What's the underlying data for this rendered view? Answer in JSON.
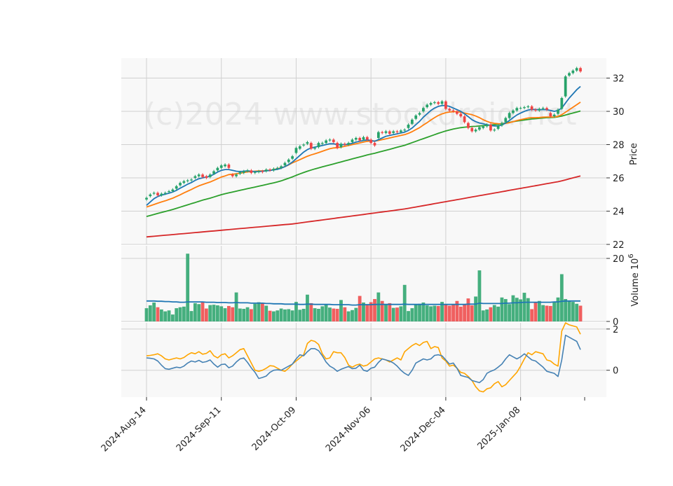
{
  "chart_data": {
    "type": "candlestick",
    "watermark": "(c)2024 www.stockdroid.net",
    "price_panel": {
      "ylabel": "Price",
      "ylim": [
        22,
        33.2
      ],
      "yticks": [
        22,
        24,
        26,
        28,
        30,
        32
      ]
    },
    "volume_panel": {
      "ylabel": "Volume",
      "ylabel_exponent": "10^6",
      "ylim": [
        0,
        24
      ],
      "yticks": [
        0,
        20
      ]
    },
    "indicator_panel": {
      "ylim": [
        -1.3,
        2.3
      ],
      "yticks": [
        0,
        2
      ]
    },
    "x_ticks": [
      {
        "label": "2024-Aug-14",
        "index": 0
      },
      {
        "label": "2024-Sep-11",
        "index": 20
      },
      {
        "label": "2024-Oct-09",
        "index": 40
      },
      {
        "label": "2024-Nov-06",
        "index": 60
      },
      {
        "label": "2024-Dec-04",
        "index": 80
      },
      {
        "label": "2025-Jan-08",
        "index": 100
      }
    ],
    "colors": {
      "up": "#26a269",
      "down": "#ef4444",
      "ma_short": "#1f77b4",
      "ma_mid": "#ff7f0e",
      "ma_long": "#2ca02c",
      "ma_200": "#d62728",
      "volume_avg": "#1f77b4",
      "osc_1": "#4682b4",
      "osc_2": "#ffa500",
      "panel_bg": "#f8f8f8",
      "grid": "#d0d0d0"
    },
    "candles_close": [
      24.8,
      25.0,
      25.1,
      24.95,
      25.05,
      25.1,
      25.2,
      25.3,
      25.5,
      25.7,
      25.8,
      25.85,
      25.9,
      26.1,
      26.2,
      26.05,
      26.0,
      26.2,
      26.4,
      26.6,
      26.75,
      26.8,
      26.6,
      26.1,
      26.2,
      26.35,
      26.4,
      26.45,
      26.3,
      26.35,
      26.4,
      26.35,
      26.5,
      26.45,
      26.55,
      26.6,
      26.7,
      26.9,
      27.1,
      27.3,
      27.8,
      27.9,
      28.0,
      28.15,
      27.75,
      27.8,
      28.1,
      28.1,
      28.25,
      28.3,
      28.15,
      27.8,
      28.05,
      28.0,
      28.1,
      28.3,
      28.4,
      28.25,
      28.45,
      28.3,
      28.1,
      27.95,
      28.75,
      28.7,
      28.8,
      28.65,
      28.8,
      28.75,
      28.85,
      28.9,
      29.2,
      29.5,
      29.75,
      29.9,
      30.2,
      30.4,
      30.5,
      30.55,
      30.45,
      30.6,
      30.15,
      30.05,
      30.0,
      29.85,
      29.7,
      29.35,
      29.0,
      28.8,
      28.9,
      29.05,
      29.1,
      29.2,
      28.85,
      28.9,
      29.15,
      29.3,
      29.6,
      29.9,
      30.05,
      30.2,
      30.2,
      30.25,
      30.3,
      30.1,
      30.05,
      30.15,
      30.2,
      30.1,
      29.7,
      29.8,
      30.1,
      30.8,
      32.1,
      32.3,
      32.45,
      32.6,
      32.4
    ],
    "candles_open": [
      24.7,
      24.9,
      25.05,
      25.1,
      24.95,
      25.05,
      25.15,
      25.2,
      25.35,
      25.55,
      25.7,
      25.8,
      25.85,
      26.0,
      26.1,
      26.2,
      26.1,
      26.05,
      26.25,
      26.45,
      26.6,
      26.7,
      26.8,
      26.2,
      26.1,
      26.25,
      26.3,
      26.4,
      26.45,
      26.3,
      26.35,
      26.4,
      26.4,
      26.5,
      26.45,
      26.55,
      26.6,
      26.75,
      26.95,
      27.15,
      27.5,
      27.75,
      27.95,
      28.05,
      28.1,
      27.75,
      27.85,
      28.05,
      28.1,
      28.25,
      28.3,
      28.1,
      27.85,
      28.05,
      28.0,
      28.15,
      28.3,
      28.4,
      28.3,
      28.45,
      28.3,
      28.1,
      28.4,
      28.75,
      28.7,
      28.8,
      28.7,
      28.8,
      28.75,
      28.85,
      29.0,
      29.25,
      29.55,
      29.8,
      30.0,
      30.25,
      30.4,
      30.5,
      30.55,
      30.45,
      30.6,
      30.15,
      30.05,
      30.0,
      29.85,
      29.7,
      29.3,
      29.0,
      28.8,
      28.9,
      29.0,
      29.1,
      29.2,
      28.85,
      28.95,
      29.15,
      29.35,
      29.6,
      29.9,
      30.05,
      30.2,
      30.2,
      30.25,
      30.3,
      30.1,
      30.05,
      30.15,
      30.2,
      29.9,
      29.7,
      29.85,
      30.15,
      30.9,
      32.15,
      32.3,
      32.45,
      32.6
    ],
    "ma_short": [
      24.35,
      24.55,
      24.75,
      24.88,
      24.96,
      25.02,
      25.08,
      25.15,
      25.25,
      25.38,
      25.5,
      25.62,
      25.72,
      25.85,
      25.95,
      26.0,
      26.05,
      26.1,
      26.22,
      26.35,
      26.45,
      26.5,
      26.5,
      26.45,
      26.4,
      26.38,
      26.4,
      26.42,
      26.4,
      26.38,
      26.38,
      26.4,
      26.42,
      26.45,
      26.48,
      26.52,
      26.58,
      26.68,
      26.8,
      26.95,
      27.15,
      27.35,
      27.55,
      27.7,
      27.8,
      27.85,
      27.9,
      27.95,
      28.0,
      28.05,
      28.05,
      28.0,
      28.0,
      28.0,
      28.02,
      28.08,
      28.15,
      28.2,
      28.25,
      28.28,
      28.25,
      28.2,
      28.3,
      28.4,
      28.5,
      28.55,
      28.6,
      28.65,
      28.7,
      28.75,
      28.85,
      29.0,
      29.2,
      29.4,
      29.65,
      29.85,
      30.05,
      30.2,
      30.3,
      30.35,
      30.35,
      30.3,
      30.2,
      30.1,
      30.0,
      29.85,
      29.68,
      29.5,
      29.38,
      29.3,
      29.25,
      29.2,
      29.15,
      29.12,
      29.12,
      29.18,
      29.3,
      29.45,
      29.62,
      29.78,
      29.9,
      30.0,
      30.08,
      30.12,
      30.1,
      30.1,
      30.1,
      30.1,
      30.05,
      30.0,
      30.05,
      30.2,
      30.5,
      30.8,
      31.05,
      31.3,
      31.5
    ],
    "ma_mid": [
      24.25,
      24.32,
      24.4,
      24.48,
      24.55,
      24.62,
      24.7,
      24.78,
      24.88,
      24.98,
      25.1,
      25.2,
      25.3,
      25.42,
      25.52,
      25.6,
      25.68,
      25.75,
      25.85,
      25.95,
      26.05,
      26.12,
      26.2,
      26.22,
      26.25,
      26.28,
      26.32,
      26.36,
      26.38,
      26.4,
      26.42,
      26.42,
      26.44,
      26.46,
      26.5,
      26.55,
      26.6,
      26.68,
      26.78,
      26.9,
      27.0,
      27.1,
      27.2,
      27.3,
      27.38,
      27.45,
      27.52,
      27.6,
      27.68,
      27.75,
      27.8,
      27.82,
      27.85,
      27.9,
      27.95,
      28.0,
      28.05,
      28.1,
      28.15,
      28.2,
      28.22,
      28.22,
      28.25,
      28.3,
      28.35,
      28.4,
      28.45,
      28.5,
      28.55,
      28.6,
      28.68,
      28.78,
      28.9,
      29.02,
      29.18,
      29.32,
      29.48,
      29.62,
      29.75,
      29.85,
      29.92,
      29.96,
      29.98,
      29.98,
      29.95,
      29.9,
      29.85,
      29.8,
      29.72,
      29.62,
      29.5,
      29.4,
      29.32,
      29.28,
      29.26,
      29.25,
      29.28,
      29.32,
      29.38,
      29.45,
      29.5,
      29.55,
      29.6,
      29.62,
      29.62,
      29.63,
      29.65,
      29.66,
      29.66,
      29.66,
      29.7,
      29.8,
      29.95,
      30.1,
      30.25,
      30.4,
      30.55
    ],
    "ma_long": [
      23.68,
      23.74,
      23.8,
      23.86,
      23.92,
      23.98,
      24.04,
      24.1,
      24.17,
      24.24,
      24.31,
      24.38,
      24.45,
      24.52,
      24.59,
      24.66,
      24.72,
      24.78,
      24.85,
      24.92,
      24.99,
      25.05,
      25.1,
      25.15,
      25.2,
      25.25,
      25.3,
      25.35,
      25.4,
      25.45,
      25.5,
      25.55,
      25.6,
      25.65,
      25.7,
      25.76,
      25.82,
      25.9,
      25.98,
      26.06,
      26.15,
      26.24,
      26.32,
      26.4,
      26.47,
      26.54,
      26.6,
      26.66,
      26.72,
      26.78,
      26.84,
      26.9,
      26.96,
      27.02,
      27.08,
      27.14,
      27.2,
      27.26,
      27.32,
      27.38,
      27.43,
      27.48,
      27.54,
      27.6,
      27.66,
      27.72,
      27.78,
      27.84,
      27.9,
      27.96,
      28.04,
      28.12,
      28.2,
      28.28,
      28.36,
      28.44,
      28.52,
      28.6,
      28.68,
      28.75,
      28.82,
      28.88,
      28.94,
      28.98,
      29.02,
      29.05,
      29.07,
      29.09,
      29.1,
      29.12,
      29.14,
      29.16,
      29.18,
      29.2,
      29.22,
      29.26,
      29.3,
      29.34,
      29.38,
      29.42,
      29.45,
      29.48,
      29.51,
      29.54,
      29.56,
      29.58,
      29.6,
      29.62,
      29.63,
      29.64,
      29.67,
      29.72,
      29.78,
      29.84,
      29.9,
      29.96,
      30.02
    ],
    "ma_200": [
      22.45,
      22.47,
      22.49,
      22.51,
      22.53,
      22.55,
      22.57,
      22.59,
      22.61,
      22.63,
      22.65,
      22.67,
      22.69,
      22.71,
      22.73,
      22.75,
      22.77,
      22.79,
      22.81,
      22.83,
      22.85,
      22.87,
      22.89,
      22.91,
      22.93,
      22.95,
      22.97,
      22.99,
      23.01,
      23.03,
      23.05,
      23.07,
      23.09,
      23.11,
      23.13,
      23.15,
      23.17,
      23.19,
      23.21,
      23.23,
      23.26,
      23.29,
      23.32,
      23.35,
      23.38,
      23.41,
      23.44,
      23.47,
      23.5,
      23.53,
      23.56,
      23.59,
      23.62,
      23.65,
      23.68,
      23.71,
      23.74,
      23.77,
      23.8,
      23.83,
      23.86,
      23.89,
      23.92,
      23.95,
      23.98,
      24.01,
      24.04,
      24.07,
      24.1,
      24.13,
      24.17,
      24.21,
      24.25,
      24.29,
      24.33,
      24.37,
      24.41,
      24.45,
      24.49,
      24.53,
      24.57,
      24.61,
      24.65,
      24.69,
      24.73,
      24.77,
      24.81,
      24.85,
      24.89,
      24.93,
      24.97,
      25.01,
      25.05,
      25.09,
      25.13,
      25.17,
      25.21,
      25.25,
      25.29,
      25.33,
      25.37,
      25.41,
      25.45,
      25.49,
      25.53,
      25.57,
      25.61,
      25.65,
      25.69,
      25.73,
      25.77,
      25.82,
      25.88,
      25.94,
      26.0,
      26.06,
      26.12
    ],
    "volume": [
      4.2,
      5.1,
      6.0,
      4.5,
      3.8,
      3.2,
      3.5,
      2.2,
      4.2,
      4.5,
      4.7,
      21.5,
      3.3,
      5.8,
      5.5,
      6.3,
      4.1,
      5.2,
      5.3,
      5.1,
      4.8,
      4.2,
      4.9,
      4.5,
      9.2,
      4.1,
      4.0,
      4.5,
      3.9,
      5.6,
      6.1,
      5.9,
      5.0,
      3.4,
      3.2,
      3.5,
      4.1,
      3.8,
      3.9,
      3.5,
      6.2,
      3.7,
      4.0,
      8.5,
      5.8,
      4.2,
      4.0,
      4.8,
      5.3,
      4.4,
      4.1,
      4.0,
      6.8,
      4.5,
      3.2,
      3.6,
      4.3,
      8.1,
      6.0,
      5.5,
      6.1,
      7.1,
      9.2,
      6.5,
      5.5,
      5.8,
      4.3,
      4.4,
      4.8,
      11.6,
      3.3,
      4.2,
      5.5,
      5.6,
      6.0,
      5.1,
      4.8,
      5.0,
      4.9,
      6.2,
      5.3,
      5.0,
      5.5,
      6.5,
      4.7,
      5.5,
      7.3,
      5.1,
      7.9,
      16.2,
      3.5,
      3.8,
      4.5,
      5.2,
      4.7,
      7.6,
      7.1,
      5.5,
      8.3,
      7.5,
      7.0,
      9.1,
      7.4,
      3.9,
      6.0,
      6.5,
      5.2,
      5.0,
      4.9,
      6.3,
      7.6,
      15.0,
      7.1,
      6.5,
      6.2,
      5.6,
      5.0
    ],
    "volume_avg": [
      6.5,
      6.5,
      6.5,
      6.4,
      6.4,
      6.3,
      6.3,
      6.2,
      6.2,
      6.1,
      6.1,
      6.2,
      6.2,
      6.2,
      6.2,
      6.2,
      6.1,
      6.1,
      6.1,
      6.0,
      6.0,
      6.0,
      5.9,
      5.9,
      6.0,
      5.9,
      5.9,
      5.9,
      5.8,
      5.8,
      5.8,
      5.8,
      5.7,
      5.7,
      5.6,
      5.6,
      5.6,
      5.5,
      5.5,
      5.5,
      5.5,
      5.4,
      5.4,
      5.5,
      5.5,
      5.4,
      5.4,
      5.4,
      5.4,
      5.4,
      5.3,
      5.3,
      5.3,
      5.3,
      5.3,
      5.2,
      5.2,
      5.3,
      5.3,
      5.3,
      5.3,
      5.4,
      5.4,
      5.4,
      5.4,
      5.4,
      5.4,
      5.4,
      5.4,
      5.5,
      5.4,
      5.4,
      5.4,
      5.4,
      5.4,
      5.4,
      5.4,
      5.4,
      5.4,
      5.4,
      5.4,
      5.4,
      5.4,
      5.4,
      5.4,
      5.4,
      5.5,
      5.5,
      5.5,
      5.8,
      5.7,
      5.7,
      5.7,
      5.7,
      5.7,
      5.7,
      5.8,
      5.8,
      5.9,
      5.9,
      6.0,
      6.1,
      6.1,
      6.1,
      6.1,
      6.1,
      6.1,
      6.1,
      6.1,
      6.2,
      6.2,
      6.4,
      6.5,
      6.5,
      6.5,
      6.5,
      6.5
    ],
    "osc_1": [
      0.6,
      0.58,
      0.55,
      0.45,
      0.25,
      0.08,
      0.05,
      0.1,
      0.15,
      0.12,
      0.2,
      0.35,
      0.45,
      0.4,
      0.48,
      0.38,
      0.42,
      0.5,
      0.3,
      0.15,
      0.28,
      0.3,
      0.12,
      0.2,
      0.4,
      0.55,
      0.6,
      0.38,
      0.12,
      -0.1,
      -0.4,
      -0.35,
      -0.28,
      -0.1,
      0.0,
      0.02,
      0.0,
      0.1,
      0.2,
      0.3,
      0.55,
      0.75,
      0.7,
      0.9,
      1.05,
      1.05,
      0.95,
      0.7,
      0.4,
      0.2,
      0.1,
      -0.05,
      0.05,
      0.12,
      0.18,
      0.08,
      0.1,
      0.25,
      0.0,
      -0.05,
      0.1,
      0.15,
      0.38,
      0.55,
      0.5,
      0.45,
      0.35,
      0.2,
      0.0,
      -0.15,
      -0.25,
      0.0,
      0.35,
      0.45,
      0.55,
      0.5,
      0.55,
      0.72,
      0.75,
      0.7,
      0.5,
      0.3,
      0.35,
      0.1,
      -0.25,
      -0.3,
      -0.35,
      -0.5,
      -0.55,
      -0.6,
      -0.45,
      -0.15,
      -0.05,
      0.02,
      0.15,
      0.3,
      0.55,
      0.75,
      0.65,
      0.55,
      0.65,
      0.8,
      0.65,
      0.5,
      0.45,
      0.3,
      0.15,
      -0.05,
      -0.1,
      -0.15,
      -0.3,
      0.5,
      1.7,
      1.6,
      1.5,
      1.4,
      1.0
    ],
    "osc_2": [
      0.7,
      0.72,
      0.75,
      0.8,
      0.7,
      0.55,
      0.5,
      0.55,
      0.6,
      0.55,
      0.62,
      0.75,
      0.85,
      0.8,
      0.9,
      0.78,
      0.82,
      0.95,
      0.7,
      0.6,
      0.75,
      0.8,
      0.6,
      0.7,
      0.85,
      1.0,
      1.05,
      0.7,
      0.35,
      0.0,
      -0.05,
      0.0,
      0.1,
      0.22,
      0.2,
      0.1,
      0.0,
      -0.05,
      0.1,
      0.3,
      0.45,
      0.6,
      0.75,
      1.3,
      1.45,
      1.4,
      1.25,
      0.8,
      0.55,
      0.6,
      0.9,
      0.85,
      0.85,
      0.62,
      0.25,
      0.15,
      0.25,
      0.3,
      0.2,
      0.25,
      0.4,
      0.55,
      0.6,
      0.55,
      0.5,
      0.4,
      0.5,
      0.6,
      0.5,
      0.9,
      1.05,
      1.2,
      1.3,
      1.2,
      1.35,
      1.4,
      1.05,
      1.15,
      1.1,
      0.6,
      0.45,
      0.2,
      0.25,
      0.1,
      -0.1,
      -0.15,
      -0.3,
      -0.5,
      -0.8,
      -1.0,
      -1.05,
      -0.9,
      -0.85,
      -0.65,
      -0.55,
      -0.8,
      -0.7,
      -0.5,
      -0.3,
      -0.1,
      0.2,
      0.55,
      0.85,
      0.75,
      0.9,
      0.85,
      0.8,
      0.5,
      0.45,
      0.3,
      0.2,
      1.9,
      2.3,
      2.2,
      2.15,
      2.1,
      1.75
    ]
  }
}
